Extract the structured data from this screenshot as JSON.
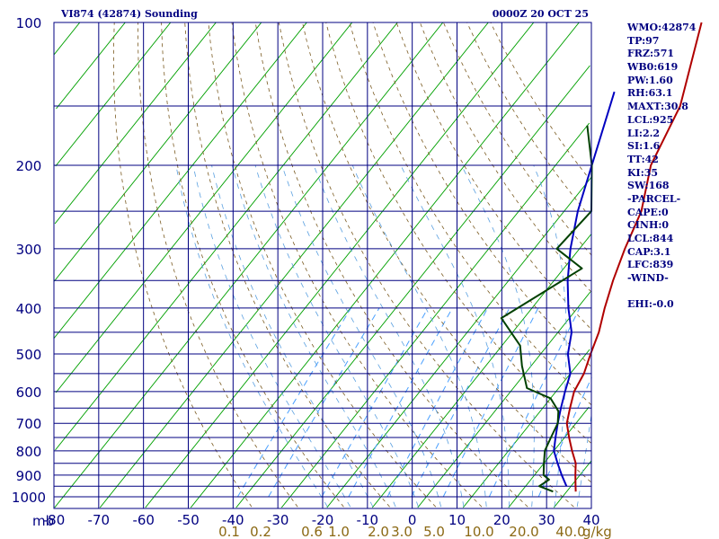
{
  "chart_data": {
    "type": "line",
    "title": "VI874 (42874) Sounding",
    "time": "0000Z 20 OCT 25",
    "pressure_unit": "mb",
    "mixing_ratio_unit": "g/kg",
    "pressure_ticks": [
      100,
      200,
      300,
      400,
      500,
      600,
      700,
      800,
      900,
      1000
    ],
    "isobars": [
      100,
      150,
      200,
      250,
      300,
      350,
      400,
      450,
      500,
      550,
      600,
      650,
      700,
      750,
      800,
      850,
      900,
      950,
      1000
    ],
    "temperature_ticks": [
      "-80",
      "-70",
      "-60",
      "-50",
      "-40",
      "-30",
      "-20",
      "-10",
      "0",
      "10",
      "20",
      "30",
      "40"
    ],
    "temperature_range": [
      -80,
      40
    ],
    "pressure_range": [
      100,
      1050
    ],
    "mixing_ratio_labels": [
      "0.1",
      "0.2",
      "0.6",
      "1.0",
      "2.0",
      "3.0",
      "5.0",
      "10.0",
      "20.0",
      "40.0"
    ],
    "series": [
      {
        "name": "Temperature",
        "color": "#b00000",
        "points": [
          [
            -23,
            100
          ],
          [
            -13,
            150
          ],
          [
            -9,
            200
          ],
          [
            -3,
            250
          ],
          [
            0,
            300
          ],
          [
            3,
            350
          ],
          [
            6,
            400
          ],
          [
            9,
            450
          ],
          [
            11,
            500
          ],
          [
            13,
            550
          ],
          [
            14,
            600
          ],
          [
            16,
            650
          ],
          [
            18,
            700
          ],
          [
            21,
            750
          ],
          [
            24,
            800
          ],
          [
            27,
            850
          ],
          [
            29,
            900
          ],
          [
            31,
            950
          ],
          [
            32,
            975
          ]
        ]
      },
      {
        "name": "Parcel",
        "color": "#0000c0",
        "points": [
          [
            -30,
            140
          ],
          [
            -22,
            200
          ],
          [
            -17,
            250
          ],
          [
            -12,
            300
          ],
          [
            -7,
            350
          ],
          [
            -2,
            400
          ],
          [
            3,
            450
          ],
          [
            6,
            500
          ],
          [
            10,
            550
          ],
          [
            12,
            600
          ],
          [
            14,
            650
          ],
          [
            16,
            700
          ],
          [
            18,
            750
          ],
          [
            20,
            800
          ],
          [
            23,
            850
          ],
          [
            26,
            900
          ],
          [
            29,
            950
          ]
        ]
      },
      {
        "name": "Dewpoint",
        "color": "#004000",
        "points": [
          [
            -30,
            165
          ],
          [
            -22,
            200
          ],
          [
            -14,
            250
          ],
          [
            -15,
            300
          ],
          [
            -6,
            330
          ],
          [
            -15,
            420
          ],
          [
            -6,
            480
          ],
          [
            -2,
            530
          ],
          [
            3,
            590
          ],
          [
            10,
            620
          ],
          [
            14,
            660
          ],
          [
            16,
            700
          ],
          [
            17,
            750
          ],
          [
            18,
            800
          ],
          [
            20,
            850
          ],
          [
            22,
            900
          ],
          [
            24,
            920
          ],
          [
            23,
            950
          ],
          [
            27,
            975
          ]
        ]
      }
    ]
  },
  "stats": [
    "WMO:42874",
    "TP:97",
    "FRZ:571",
    "WB0:619",
    "PW:1.60",
    "RH:63.1",
    "MAXT:30.8",
    "LCL:925",
    "LI:2.2",
    "SI:1.6",
    "TT:42",
    "KI:35",
    "SW:168",
    "-PARCEL-",
    "CAPE:0",
    "CINH:0",
    "LCL:844",
    "CAP:3.1",
    "LFC:839",
    "-WIND-",
    "",
    "EHI:-0.0"
  ]
}
